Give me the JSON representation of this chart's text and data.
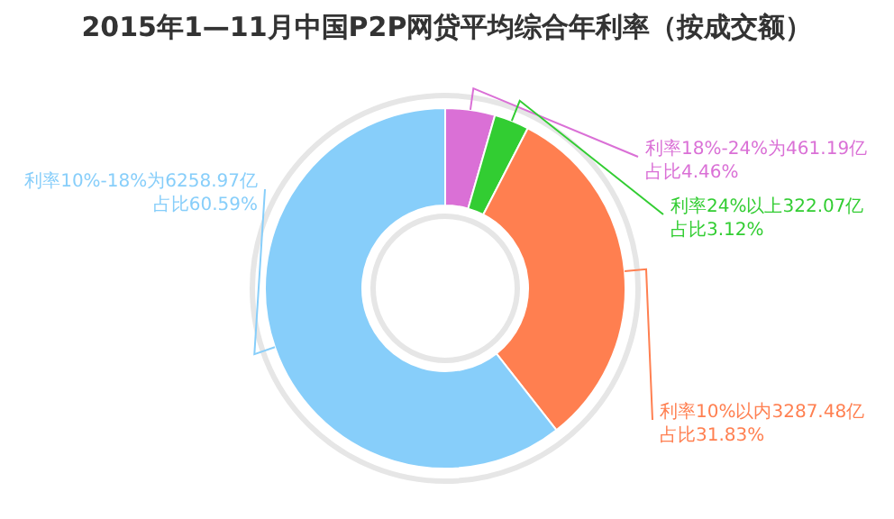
{
  "chart_data": {
    "type": "donut",
    "title": "2015年1—11月中国P2P网贷平均综合年利率（按成交额）",
    "categories": [
      "利率18%-24%",
      "利率24%以上",
      "利率10%以内",
      "利率10%-18%"
    ],
    "values": [
      4.46,
      3.12,
      31.83,
      60.59
    ],
    "colors": [
      "#da70d6",
      "#32cd32",
      "#ff7f50",
      "#87cefa"
    ],
    "value_labels": [
      [
        "为461.19亿",
        "占比4.46%"
      ],
      [
        "322.07亿",
        "占比3.12%"
      ],
      [
        "3287.48亿",
        "占比31.83%"
      ],
      [
        "为6258.97亿",
        "占比60.59%"
      ]
    ]
  }
}
